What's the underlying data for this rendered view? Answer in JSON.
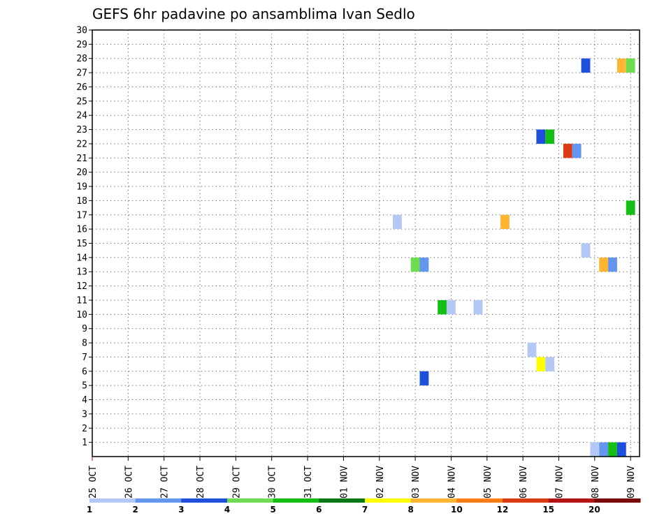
{
  "chart_data": {
    "type": "heatmap",
    "title": "GEFS 6hr padavine po ansamblima Ivan Sedlo",
    "x_tick_labels": [
      "25 OCT",
      "26 OCT",
      "27 OCT",
      "28 OCT",
      "29 OCT",
      "30 OCT",
      "31 OCT",
      "01 NOV",
      "02 NOV",
      "03 NOV",
      "04 NOV",
      "05 NOV",
      "06 NOV",
      "07 NOV",
      "08 NOV",
      "09 NOV"
    ],
    "x_range_days": [
      0,
      15.25
    ],
    "y_tick_labels": [
      "1",
      "2",
      "3",
      "4",
      "5",
      "6",
      "7",
      "8",
      "9",
      "10",
      "11",
      "12",
      "13",
      "14",
      "15",
      "16",
      "17",
      "18",
      "19",
      "20",
      "21",
      "22",
      "23",
      "24",
      "25",
      "26",
      "27",
      "28",
      "29",
      "30"
    ],
    "y_range": [
      0,
      30
    ],
    "grid": true,
    "grid_style": "dotted",
    "colorbar": {
      "labels": [
        "1",
        "2",
        "3",
        "4",
        "5",
        "6",
        "7",
        "8",
        "10",
        "12",
        "15",
        "20"
      ],
      "colors": [
        "#b4c8f5",
        "#6496f0",
        "#1e50dc",
        "#6edc50",
        "#14be14",
        "#0a7814",
        "#ffff00",
        "#ffb432",
        "#ff7d14",
        "#dc3c14",
        "#b41414",
        "#780a0a"
      ]
    },
    "cells": [
      {
        "t": 13.75,
        "member": 28,
        "class": 3
      },
      {
        "t": 14.75,
        "member": 28,
        "class": 8
      },
      {
        "t": 15.0,
        "member": 28,
        "class": 4
      },
      {
        "t": 12.5,
        "member": 23,
        "class": 3
      },
      {
        "t": 12.75,
        "member": 23,
        "class": 5
      },
      {
        "t": 13.25,
        "member": 22,
        "class": 10
      },
      {
        "t": 13.5,
        "member": 22,
        "class": 2
      },
      {
        "t": 15.0,
        "member": 18,
        "class": 5
      },
      {
        "t": 8.5,
        "member": 17,
        "class": 1
      },
      {
        "t": 11.5,
        "member": 17,
        "class": 8
      },
      {
        "t": 13.75,
        "member": 15,
        "class": 1
      },
      {
        "t": 9.0,
        "member": 14,
        "class": 4
      },
      {
        "t": 9.25,
        "member": 14,
        "class": 2
      },
      {
        "t": 14.25,
        "member": 14,
        "class": 8
      },
      {
        "t": 14.5,
        "member": 14,
        "class": 2
      },
      {
        "t": 9.75,
        "member": 11,
        "class": 5
      },
      {
        "t": 10.0,
        "member": 11,
        "class": 1
      },
      {
        "t": 10.75,
        "member": 11,
        "class": 1
      },
      {
        "t": 12.25,
        "member": 8,
        "class": 1
      },
      {
        "t": 12.5,
        "member": 7,
        "class": 7
      },
      {
        "t": 12.75,
        "member": 7,
        "class": 1
      },
      {
        "t": 9.25,
        "member": 6,
        "class": 3
      },
      {
        "t": 14.0,
        "member": 1,
        "class": 1
      },
      {
        "t": 14.25,
        "member": 1,
        "class": 2
      },
      {
        "t": 14.5,
        "member": 1,
        "class": 5
      },
      {
        "t": 14.75,
        "member": 1,
        "class": 3
      }
    ]
  }
}
